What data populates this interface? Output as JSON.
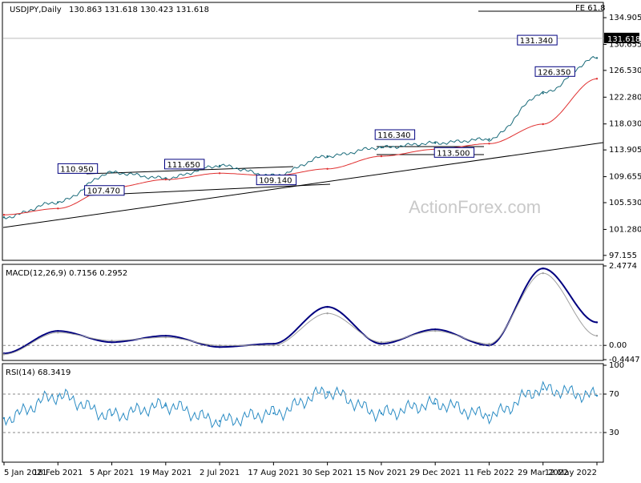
{
  "header": {
    "symbol_text": "USDJPY,Daily",
    "ohlc_text": "130.863 131.618 130.423 131.618",
    "fe_label": "FE 61.8",
    "watermark": "ActionForex.com"
  },
  "chart_data": [
    {
      "type": "line",
      "title": "USDJPY,Daily",
      "ohlc": {
        "open": 130.863,
        "high": 131.618,
        "low": 130.423,
        "close": 131.618
      },
      "ylim": [
        96.5,
        137.2
      ],
      "y_ticks": [
        "134.905",
        "130.655",
        "126.530",
        "122.280",
        "118.030",
        "113.905",
        "109.655",
        "105.530",
        "101.280",
        "97.155"
      ],
      "current_price_label": "131.618",
      "x_ticks": [
        "5 Jan 2021",
        "18 Feb 2021",
        "5 Apr 2021",
        "19 May 2021",
        "2 Jul 2021",
        "17 Aug 2021",
        "30 Sep 2021",
        "15 Nov 2021",
        "29 Dec 2021",
        "11 Feb 2022",
        "29 Mar 2022",
        "12 May 2022"
      ],
      "series": [
        {
          "color": "#1a6b7a",
          "x": [
            "5 Jan 2021",
            "18 Feb 2021",
            "5 Apr 2021",
            "19 May 2021",
            "2 Jul 2021",
            "17 Aug 2021",
            "30 Sep 2021",
            "15 Nov 2021",
            "29 Dec 2021",
            "11 Feb 2022",
            "29 Mar 2022",
            "12 May 2022"
          ],
          "values": [
            103.2,
            105.6,
            110.3,
            109.4,
            111.4,
            109.8,
            112.9,
            114.3,
            115.0,
            115.6,
            122.9,
            128.5
          ]
        },
        {
          "color": "#e03030",
          "values": [
            103.6,
            104.6,
            107.9,
            109.2,
            110.2,
            109.8,
            110.9,
            112.9,
            114.0,
            114.9,
            118.0,
            125.2
          ]
        }
      ],
      "annotations": [
        "110.950",
        "111.650",
        "107.470",
        "109.140",
        "116.340",
        "113.500",
        "131.340",
        "126.350"
      ],
      "trendlines": true
    },
    {
      "type": "line",
      "title": "MACD(12,26,9) 0.7156 0.2952",
      "ylim": [
        -0.4447,
        2.4774
      ],
      "y_ticks": [
        "2.4774",
        "0.00",
        "-0.4447"
      ],
      "series": [
        {
          "color": "#00007f",
          "x": [
            "5 Jan 2021",
            "18 Feb 2021",
            "5 Apr 2021",
            "19 May 2021",
            "2 Jul 2021",
            "17 Aug 2021",
            "30 Sep 2021",
            "15 Nov 2021",
            "29 Dec 2021",
            "11 Feb 2022",
            "29 Mar 2022",
            "12 May 2022"
          ],
          "values": [
            -0.25,
            0.45,
            0.1,
            0.3,
            -0.05,
            0.05,
            1.2,
            0.05,
            0.5,
            0.0,
            2.4,
            0.72
          ]
        },
        {
          "color": "#a0a0a0",
          "values": [
            -0.28,
            0.4,
            0.15,
            0.25,
            0.0,
            0.0,
            1.0,
            0.1,
            0.45,
            0.05,
            2.25,
            0.3
          ]
        }
      ]
    },
    {
      "type": "line",
      "title": "RSI(14) 68.3419",
      "ylim": [
        0,
        100
      ],
      "y_ticks": [
        "100",
        "70",
        "30"
      ],
      "series": [
        {
          "color": "#2b8cc4",
          "x": [
            "5 Jan 2021",
            "18 Feb 2021",
            "5 Apr 2021",
            "19 May 2021",
            "2 Jul 2021",
            "17 Aug 2021",
            "30 Sep 2021",
            "15 Nov 2021",
            "29 Dec 2021",
            "11 Feb 2022",
            "29 Mar 2022",
            "12 May 2022"
          ],
          "values": [
            45,
            68,
            48,
            58,
            42,
            50,
            72,
            50,
            60,
            48,
            75,
            68.3419
          ]
        }
      ]
    }
  ]
}
